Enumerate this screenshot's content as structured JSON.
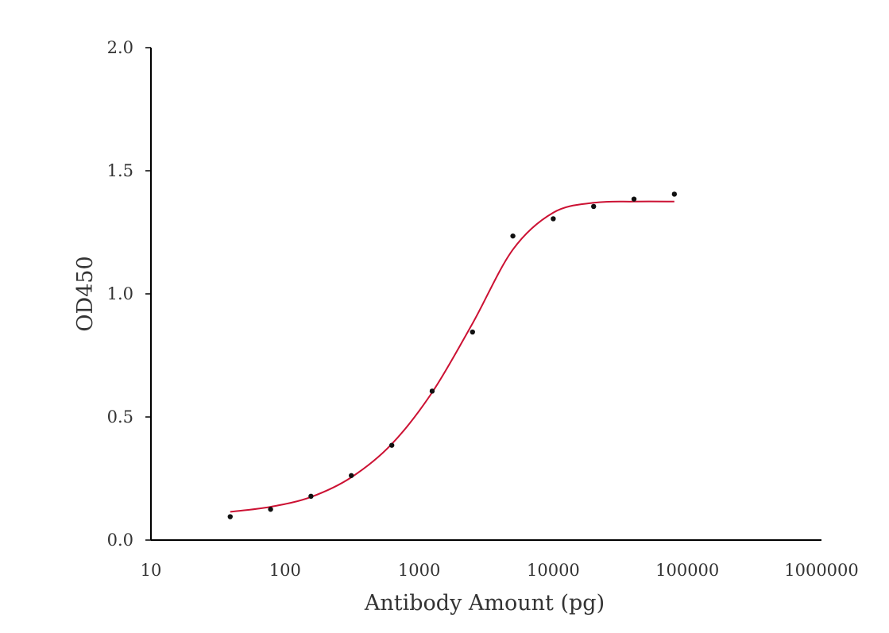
{
  "chart_data": {
    "type": "scatter",
    "title": "",
    "xlabel": "Antibody Amount (pg)",
    "ylabel": "OD450",
    "xscale": "log",
    "xlim": [
      10,
      1000000
    ],
    "ylim": [
      0,
      2
    ],
    "xticks": [
      10,
      100,
      1000,
      10000,
      100000,
      1000000
    ],
    "xtick_labels": [
      "10",
      "100",
      "1000",
      "10000",
      "100000",
      "1000000"
    ],
    "yticks": [
      0,
      0.5,
      1,
      1.5,
      2
    ],
    "ytick_labels": [
      "0.0",
      "0.5",
      "1.0",
      "1.5",
      "2.0"
    ],
    "grid": false,
    "legend": "none",
    "series": [
      {
        "type": "scatter",
        "color": "#111111",
        "x": [
          39,
          78,
          156,
          312,
          625,
          1250,
          2500,
          5000,
          10000,
          20000,
          40000,
          80000
        ],
        "y": [
          0.095,
          0.125,
          0.178,
          0.262,
          0.385,
          0.605,
          0.845,
          1.235,
          1.305,
          1.355,
          1.385,
          1.405
        ]
      },
      {
        "type": "line",
        "color": "#cc1133",
        "x": [
          39,
          78,
          156,
          312,
          625,
          1250,
          2500,
          5000,
          10000,
          20000,
          40000,
          80000
        ],
        "y": [
          0.115,
          0.135,
          0.175,
          0.255,
          0.39,
          0.6,
          0.88,
          1.18,
          1.33,
          1.37,
          1.375,
          1.375
        ]
      }
    ]
  }
}
